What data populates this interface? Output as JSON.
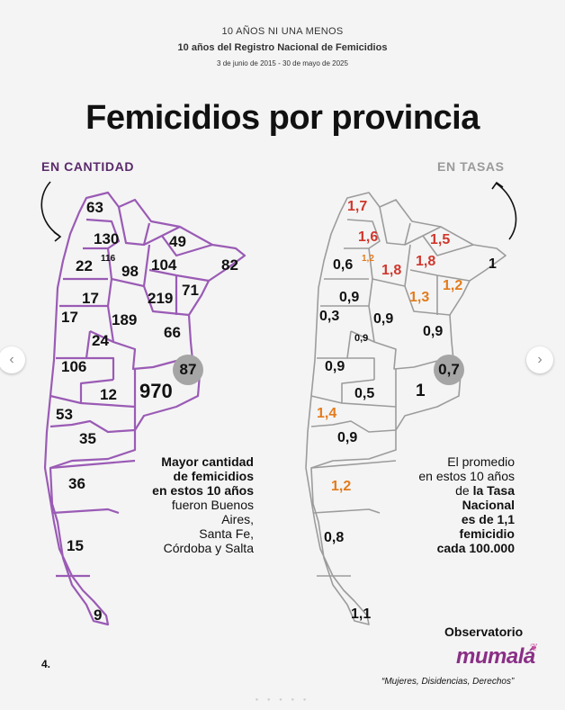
{
  "header": {
    "line1": "10 AÑOS NI UNA MENOS",
    "line2": "10 años del Registro Nacional de Femicidios",
    "dates": "3 de junio de 2015 - 30 de mayo de 2025"
  },
  "title": "Femicidios por provincia",
  "left_label": "EN CANTIDAD",
  "right_label": "EN TASAS",
  "cantidad": {
    "jujuy": "63",
    "salta": "130",
    "tucuman": "116",
    "catamarca": "22",
    "sgo_estero": "98",
    "formosa": "49",
    "chaco": "104",
    "misiones": "82",
    "la_rioja": "17",
    "santa_fe": "219",
    "corrientes": "71",
    "san_juan": "17",
    "cordoba": "189",
    "entre_rios": "66",
    "san_luis": "24",
    "mendoza": "106",
    "caba": "87",
    "la_pampa": "12",
    "buenos_aires": "970",
    "neuquen": "53",
    "rio_negro": "35",
    "chubut": "36",
    "santa_cruz": "15",
    "tierra_del_fuego": "9"
  },
  "tasas": {
    "jujuy": "1,7",
    "salta": "1,6",
    "formosa": "1,5",
    "catamarca": "0,6",
    "tucuman": "1,2",
    "sgo_estero": "1,8",
    "chaco": "1,8",
    "misiones": "1",
    "corrientes": "1,2",
    "la_rioja": "0,9",
    "santa_fe": "1,3",
    "san_juan": "0,3",
    "cordoba": "0,9",
    "entre_rios": "0,9",
    "san_luis": "0,9",
    "mendoza": "0,9",
    "caba": "0,7",
    "la_pampa": "0,5",
    "buenos_aires": "1",
    "neuquen": "1,4",
    "rio_negro": "0,9",
    "chubut": "1,2",
    "santa_cruz": "0,8",
    "tierra_del_fuego": "1,1"
  },
  "note_left": {
    "l1": "Mayor cantidad",
    "l2": "de femicidios",
    "l3": "en estos 10 años",
    "l4": "fueron Buenos",
    "l5": "Aires,",
    "l6": "Santa Fe,",
    "l7": "Córdoba y Salta"
  },
  "note_right": {
    "l1": "El promedio",
    "l2": "en estos 10 años",
    "l3a": "de ",
    "l3b": "la Tasa",
    "l4": "Nacional",
    "l5": "es de 1,1",
    "l6": "femicidio",
    "l7": "cada 100.000"
  },
  "page_number": "4.",
  "observatorio": "Observatorio",
  "logo": "mumalá",
  "slogan": "“Mujeres, Disidencias, Derechos”",
  "colors": {
    "purple_outline": "#9a5bb5",
    "gray_outline": "#9c9c9c",
    "label_purple": "#5a2a6b",
    "rate_red": "#d0372c",
    "rate_orange": "#e37b1c",
    "circle_gray": "#a5a5a5",
    "logo_purple": "#8a2f86"
  }
}
